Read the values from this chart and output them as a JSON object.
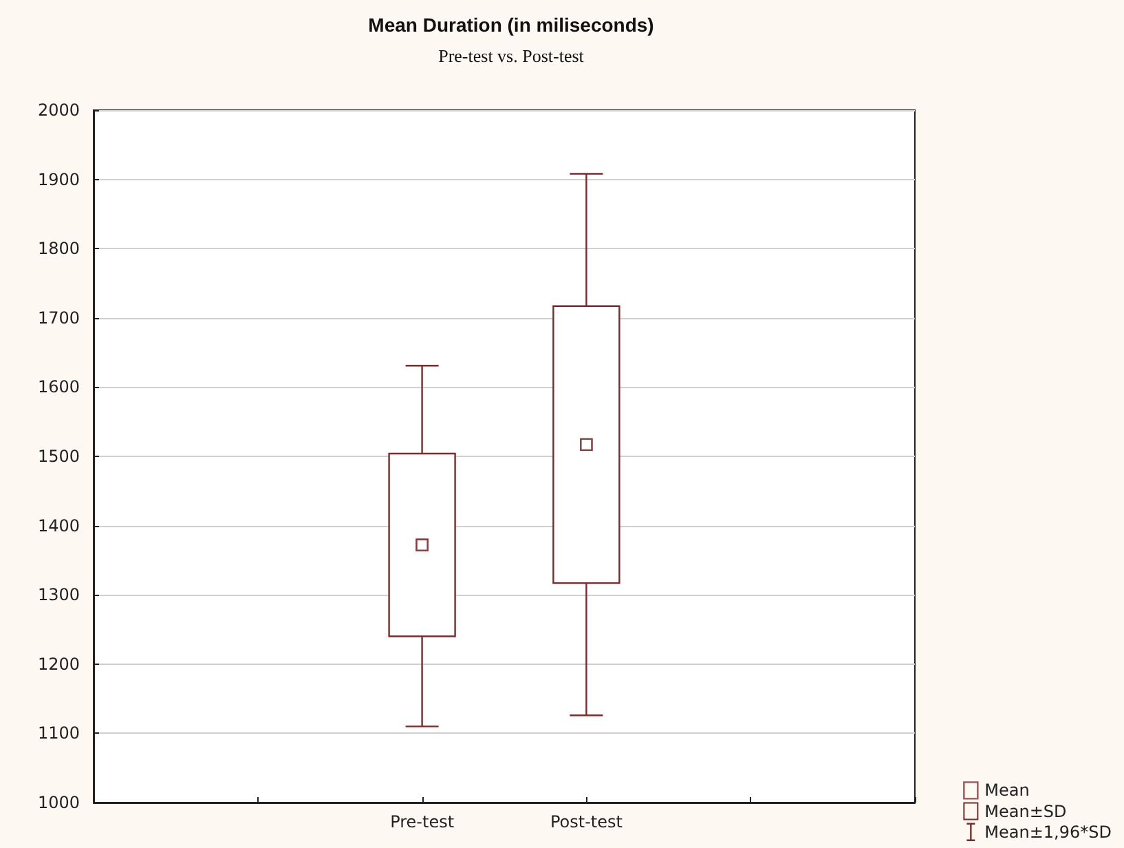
{
  "chart_data": {
    "type": "box",
    "title": "Mean Duration (in miliseconds)",
    "subtitle": "Pre-test vs. Post-test",
    "categories": [
      null,
      null,
      "Pre-test",
      "Post-test",
      null,
      null
    ],
    "series": [
      {
        "name": "Mean",
        "type": "scatter",
        "marker": "square",
        "color": "#7f2a2a",
        "values": [
          null,
          null,
          1372,
          1517,
          null,
          null
        ]
      },
      {
        "name": "Mean±SD",
        "type": "bar",
        "color": "#7f2a2a",
        "base": [
          null,
          null,
          1240,
          1317,
          null,
          null
        ],
        "values": [
          null,
          null,
          264,
          400,
          null,
          null
        ]
      },
      {
        "name": "Mean±1,96*SD",
        "type": "scatter",
        "marker": "square",
        "color": "#7f2a2a",
        "values": [
          null,
          null,
          1372,
          1517,
          null,
          null
        ],
        "errors": [
          null,
          null,
          [
            1110,
            1631
          ],
          [
            1126,
            1908
          ],
          null,
          null
        ]
      }
    ],
    "ylim": [
      1000,
      2000
    ],
    "yticks": [
      1000,
      1100,
      1200,
      1300,
      1400,
      1500,
      1600,
      1700,
      1800,
      1900,
      2000
    ],
    "grid": "y",
    "legend": "bottom right"
  }
}
